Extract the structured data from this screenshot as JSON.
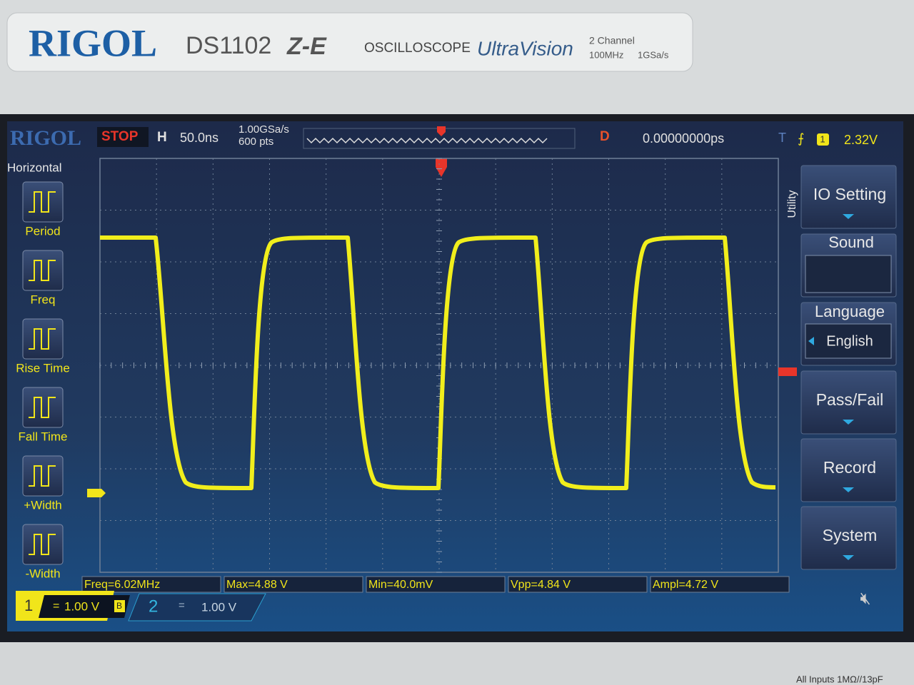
{
  "bezel": {
    "brand": "RIGOL",
    "model": "DS1102",
    "model_suffix": "Z-E",
    "product": "OSCILLOSCOPE",
    "series": "UltraVision",
    "channels": "2 Channel",
    "bandwidth": "100MHz",
    "sample_rate": "1GSa/s",
    "inputs": "All Inputs 1MΩ//13pF"
  },
  "status": {
    "logo": "RIGOL",
    "state": "STOP",
    "horizontal_label": "H",
    "timebase": "50.0ns",
    "sample_rate": "1.00GSa/s",
    "memory_depth": "600 pts",
    "delay_label": "D",
    "delay": "0.00000000ps",
    "trigger_label": "T",
    "trigger_source": "1",
    "trigger_level": "2.32V"
  },
  "left_menu": {
    "title": "Horizontal",
    "items": [
      "Period",
      "Freq",
      "Rise Time",
      "Fall Time",
      "+Width",
      "-Width"
    ]
  },
  "right_menu": {
    "title": "Utility",
    "items": [
      {
        "label": "IO Setting"
      },
      {
        "label": "Sound"
      },
      {
        "label": "Language",
        "value": "English"
      },
      {
        "label": "Pass/Fail"
      },
      {
        "label": "Record"
      },
      {
        "label": "System"
      }
    ]
  },
  "measurements": [
    "Freq=6.02MHz",
    "Max=4.88 V",
    "Min=40.0mV",
    "Vpp=4.84 V",
    "Ampl=4.72 V"
  ],
  "channels": [
    {
      "number": "1",
      "scale": "1.00 V",
      "bandwidth_flag": "B"
    },
    {
      "number": "2",
      "scale": "1.00 V"
    }
  ]
}
